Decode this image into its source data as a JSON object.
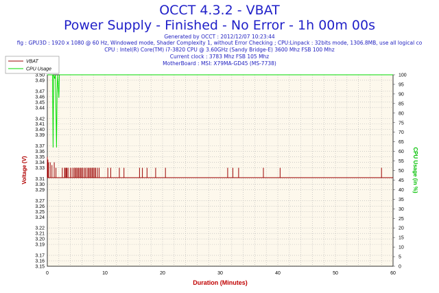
{
  "header": {
    "title": "OCCT 4.3.2 - VBAT",
    "subtitle": "Power Supply - Finished - No Error - 1h 00m 00s",
    "info": [
      "Generated by OCCT : 2012/12/07 10:23:44",
      "fig : GPU3D : 1920 x 1080 @ 60 Hz, Windowed mode, Shader Complexity 1, without Error Checking ; CPU:Linpack : 32bits mode, 1306.8MB, use all logical co",
      "CPU : Intel(R) Core(TM) i7-3820 CPU @ 3.60GHz (Sandy Bridge-E) 3600 Mhz FSB 100 Mhz",
      "Current clock : 3783 Mhz FSB 105 Mhz",
      "MotherBoard : MSI: X79MA-GD45 (MS-7738)"
    ]
  },
  "colors": {
    "title": "#1f1fc8",
    "vbat": "#9b0000",
    "cpu": "#00dd00",
    "plot_bg": "#fdf8ec",
    "grid": "#b0b0b0",
    "axis_label_left": "#b00000",
    "axis_label_right": "#00c000",
    "xlabel": "#c00000"
  },
  "chart_data": {
    "type": "line",
    "xlabel": "Duration (Minutes)",
    "ylabel": "Voltage (V)",
    "y2label": "CPU Usage (in %)",
    "xlim": [
      0,
      60
    ],
    "ylim": [
      3.15,
      3.5
    ],
    "y2lim": [
      0,
      100
    ],
    "xticks": [
      0,
      10,
      20,
      30,
      40,
      50,
      60
    ],
    "yticks": [
      3.15,
      3.16,
      3.17,
      3.19,
      3.2,
      3.21,
      3.22,
      3.24,
      3.25,
      3.26,
      3.27,
      3.29,
      3.3,
      3.31,
      3.33,
      3.34,
      3.35,
      3.36,
      3.37,
      3.39,
      3.4,
      3.41,
      3.42,
      3.44,
      3.45,
      3.46,
      3.47,
      3.49,
      3.5
    ],
    "y2ticks": [
      0,
      5,
      10,
      15,
      20,
      25,
      30,
      35,
      40,
      45,
      50,
      55,
      60,
      65,
      70,
      75,
      80,
      85,
      90,
      95,
      100
    ],
    "legend": [
      "VBAT",
      "CPU Usage"
    ],
    "legend_position": "top-left",
    "grid": true,
    "series": [
      {
        "name": "VBAT",
        "axis": "left",
        "baseline": 3.312,
        "x": [
          0,
          0.1,
          0.2,
          0.5,
          0.8,
          1.2,
          1.3,
          1.5,
          2.0,
          2.6,
          3.0,
          3.1,
          3.3,
          3.4,
          3.6,
          4.0,
          4.3,
          4.6,
          4.8,
          5.0,
          5.2,
          5.4,
          5.6,
          5.8,
          6.0,
          6.2,
          6.5,
          6.7,
          7.0,
          7.2,
          7.4,
          7.6,
          7.8,
          8.0,
          8.2,
          8.4,
          8.7,
          9.0,
          10.5,
          11.0,
          12.5,
          13.3,
          16.0,
          16.5,
          17.3,
          18.8,
          20.5,
          31.3,
          32.2,
          33.2,
          37.5,
          40.4,
          58.0,
          59.8
        ],
        "y": [
          3.35,
          3.345,
          3.34,
          3.34,
          3.335,
          3.34,
          3.312,
          3.33,
          3.312,
          3.33,
          3.33,
          3.33,
          3.33,
          3.33,
          3.33,
          3.33,
          3.33,
          3.33,
          3.33,
          3.33,
          3.33,
          3.33,
          3.33,
          3.33,
          3.33,
          3.33,
          3.33,
          3.33,
          3.33,
          3.33,
          3.33,
          3.33,
          3.33,
          3.33,
          3.33,
          3.33,
          3.33,
          3.33,
          3.33,
          3.33,
          3.33,
          3.33,
          3.33,
          3.33,
          3.33,
          3.33,
          3.33,
          3.33,
          3.33,
          3.33,
          3.33,
          3.33,
          3.33,
          3.312
        ]
      },
      {
        "name": "CPU Usage",
        "axis": "right",
        "x": [
          0,
          0.05,
          0.3,
          0.5,
          0.9,
          1.0,
          1.1,
          1.3,
          1.4,
          1.6,
          1.7,
          1.8,
          2.0,
          2.1,
          2.3,
          2.5,
          60
        ],
        "y": [
          100,
          100,
          100,
          100,
          100,
          62,
          100,
          98,
          100,
          62,
          92,
          100,
          88,
          100,
          100,
          100,
          100
        ]
      }
    ]
  }
}
